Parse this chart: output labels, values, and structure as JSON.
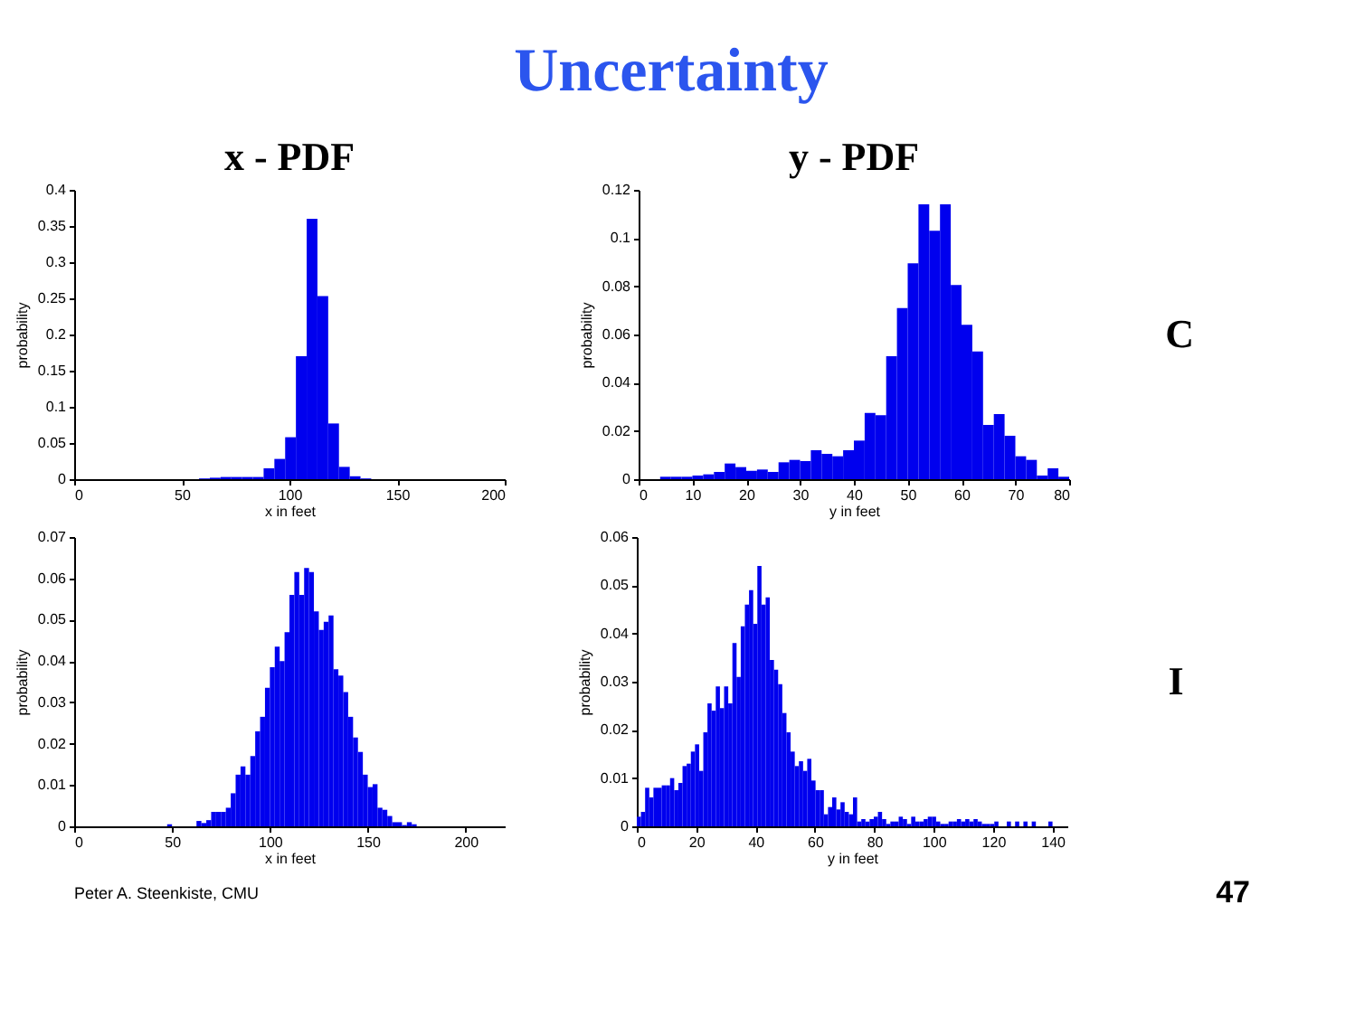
{
  "chart_data": [
    {
      "type": "histogram",
      "title": "x - PDF",
      "xlabel": "x in feet",
      "ylabel": "probability",
      "color": "#0000ee",
      "annotations": [
        "Uncertainty"
      ],
      "bins": [
        58,
        63,
        68,
        73,
        78,
        83,
        88,
        93,
        98,
        103,
        108,
        113,
        118,
        123,
        128,
        133,
        138
      ],
      "values": [
        0.001,
        0.002,
        0.003,
        0.003,
        0.003,
        0.003,
        0.015,
        0.028,
        0.058,
        0.17,
        0.36,
        0.253,
        0.077,
        0.017,
        0.004,
        0.001
      ],
      "xlim": [
        0,
        200
      ],
      "xticks": [
        0,
        50,
        100,
        150,
        200
      ],
      "ylim": [
        0,
        0.4
      ],
      "yticks": [
        0,
        0.05,
        0.1,
        0.15,
        0.2,
        0.25,
        0.3,
        0.35,
        0.4
      ],
      "grid": false
    },
    {
      "type": "histogram",
      "title": "y - PDF",
      "xlabel": "y in feet",
      "ylabel": "probability",
      "color": "#0000ee",
      "annotations": [
        "C"
      ],
      "bins": [
        4,
        6,
        8,
        10,
        12,
        14,
        16,
        18,
        20,
        22,
        24,
        26,
        28,
        30,
        32,
        34,
        36,
        38,
        40,
        42,
        44,
        46,
        48,
        50,
        52,
        54,
        56,
        58,
        60,
        62,
        64,
        66,
        68,
        70,
        72,
        74,
        76,
        78,
        80
      ],
      "values": [
        0.001,
        0.001,
        0.001,
        0.0015,
        0.002,
        0.003,
        0.0065,
        0.005,
        0.0035,
        0.004,
        0.003,
        0.007,
        0.008,
        0.0075,
        0.012,
        0.0105,
        0.0095,
        0.012,
        0.016,
        0.0275,
        0.0265,
        0.051,
        0.071,
        0.0895,
        0.114,
        0.103,
        0.114,
        0.0805,
        0.064,
        0.053,
        0.0225,
        0.027,
        0.018,
        0.0095,
        0.008,
        0.0015,
        0.0045,
        0.001
      ],
      "xlim": [
        0,
        80
      ],
      "xticks": [
        0,
        10,
        20,
        30,
        40,
        50,
        60,
        70,
        80
      ],
      "ylim": [
        0,
        0.12
      ],
      "yticks": [
        0,
        0.02,
        0.04,
        0.06,
        0.08,
        0.1,
        0.12
      ],
      "grid": false
    },
    {
      "type": "histogram",
      "xlabel": "x in feet",
      "ylabel": "probability",
      "color": "#0000ee",
      "annotations": [
        "Peter A. Steenkiste, CMU"
      ],
      "bins": [
        47.5,
        50,
        52.5,
        55,
        57.5,
        60,
        62.5,
        65,
        67.5,
        70,
        72.5,
        75,
        77.5,
        80,
        82.5,
        85,
        87.5,
        90,
        92.5,
        95,
        97.5,
        100,
        102.5,
        105,
        107.5,
        110,
        112.5,
        115,
        117.5,
        120,
        122.5,
        125,
        127.5,
        130,
        132.5,
        135,
        137.5,
        140,
        142.5,
        145,
        147.5,
        150,
        152.5,
        155,
        157.5,
        160,
        162.5,
        165,
        167.5,
        170,
        172.5,
        175
      ],
      "values": [
        0.0005,
        0,
        0,
        0,
        0,
        0,
        0.0013,
        0.0008,
        0.0015,
        0.0035,
        0.0035,
        0.0035,
        0.0045,
        0.008,
        0.0125,
        0.0145,
        0.0125,
        0.017,
        0.023,
        0.0265,
        0.0335,
        0.0385,
        0.0435,
        0.04,
        0.047,
        0.056,
        0.0615,
        0.056,
        0.0625,
        0.0615,
        0.052,
        0.0475,
        0.0495,
        0.051,
        0.038,
        0.0365,
        0.0325,
        0.0265,
        0.0215,
        0.018,
        0.0125,
        0.0095,
        0.0102,
        0.0045,
        0.004,
        0.0025,
        0.001,
        0.001,
        0.0003,
        0.001,
        0.0005
      ],
      "xlim": [
        0,
        220
      ],
      "xticks": [
        0,
        50,
        100,
        150,
        200
      ],
      "ylim": [
        0,
        0.07
      ],
      "yticks": [
        0,
        0.01,
        0.02,
        0.03,
        0.04,
        0.05,
        0.06,
        0.07
      ],
      "grid": false
    },
    {
      "type": "histogram",
      "xlabel": "y in feet",
      "ylabel": "probability",
      "color": "#0000ee",
      "annotations": [
        "I",
        "47"
      ],
      "bins": [
        0,
        1.4,
        2.8,
        4.2,
        5.6,
        7,
        8.4,
        9.8,
        11.2,
        12.6,
        14,
        15.4,
        16.8,
        18.2,
        19.6,
        21,
        22.4,
        23.8,
        25.2,
        26.6,
        28,
        29.4,
        30.8,
        32.2,
        33.6,
        35,
        36.4,
        37.8,
        39.2,
        40.6,
        42,
        43.4,
        44.8,
        46.2,
        47.6,
        49,
        50.4,
        51.8,
        53.2,
        54.6,
        56,
        57.4,
        58.8,
        60.2,
        61.6,
        63,
        64.4,
        65.8,
        67.2,
        68.6,
        70,
        71.4,
        72.8,
        74.2,
        75.6,
        77,
        78.4,
        79.8,
        81.2,
        82.6,
        84,
        85.4,
        86.8,
        88.2,
        89.6,
        91,
        92.4,
        93.8,
        95.2,
        96.6,
        98,
        99.4,
        100.8,
        102.2,
        103.6,
        105,
        106.4,
        107.8,
        109.2,
        110.6,
        112,
        113.4,
        114.8,
        116.2,
        117.6,
        119,
        120.4,
        121.8,
        123.2,
        124.6,
        126,
        127.4,
        128.8,
        130.2,
        131.6,
        133,
        134.4,
        135.8,
        137.2,
        138.6,
        140
      ],
      "values": [
        0.002,
        0.003,
        0.008,
        0.006,
        0.008,
        0.008,
        0.0085,
        0.0085,
        0.01,
        0.0075,
        0.009,
        0.0125,
        0.013,
        0.0155,
        0.017,
        0.0115,
        0.0195,
        0.0255,
        0.024,
        0.029,
        0.0245,
        0.029,
        0.0255,
        0.038,
        0.031,
        0.0415,
        0.046,
        0.049,
        0.042,
        0.054,
        0.046,
        0.0475,
        0.0345,
        0.0325,
        0.0295,
        0.0235,
        0.0195,
        0.0155,
        0.0125,
        0.0135,
        0.0115,
        0.014,
        0.0095,
        0.0075,
        0.0075,
        0.0025,
        0.004,
        0.006,
        0.0035,
        0.005,
        0.003,
        0.0025,
        0.006,
        0.001,
        0.0015,
        0.001,
        0.0015,
        0.002,
        0.003,
        0.0015,
        0.0005,
        0.001,
        0.001,
        0.002,
        0.0015,
        0.0005,
        0.002,
        0.001,
        0.001,
        0.0015,
        0.002,
        0.002,
        0.001,
        0.0005,
        0.0005,
        0.001,
        0.001,
        0.0015,
        0.001,
        0.0015,
        0.001,
        0.0015,
        0.001,
        0.0005,
        0.0005,
        0.0005,
        0.001,
        0,
        0,
        0.001,
        0,
        0.001,
        0,
        0.001,
        0,
        0.001,
        0,
        0,
        0,
        0.001
      ],
      "xlim": [
        0,
        145
      ],
      "xticks": [
        0,
        20,
        40,
        60,
        80,
        100,
        120,
        140
      ],
      "ylim": [
        0,
        0.06
      ],
      "yticks": [
        0,
        0.01,
        0.02,
        0.03,
        0.04,
        0.05,
        0.06
      ],
      "grid": false
    }
  ]
}
